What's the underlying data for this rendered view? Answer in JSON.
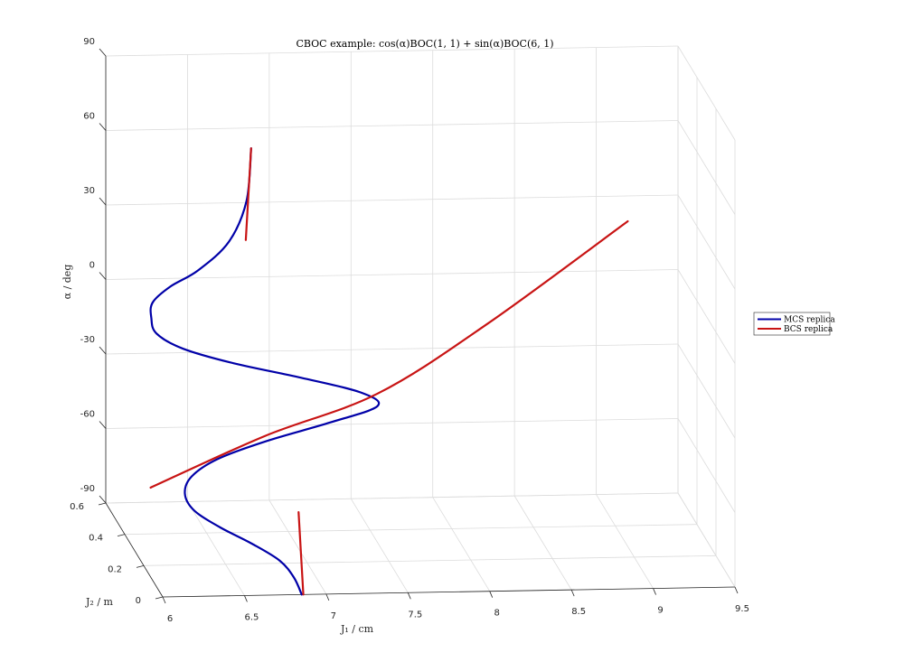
{
  "chart_data": {
    "type": "line",
    "title": "CBOC example: cos(α)BOC(1, 1) + sin(α)BOC(6, 1)",
    "xlabel": "J₁ / cm",
    "ylabel": "J₂ / m",
    "zlabel": "α / deg",
    "xlim": [
      6,
      9.5
    ],
    "ylim": [
      0,
      0.6
    ],
    "zlim": [
      -90,
      90
    ],
    "x_ticks": [
      "6",
      "6.5",
      "7",
      "7.5",
      "8",
      "8.5",
      "9",
      "9.5"
    ],
    "y_ticks": [
      "0",
      "0.2",
      "0.4",
      "0.6"
    ],
    "z_ticks": [
      "-90",
      "-60",
      "-30",
      "0",
      "30",
      "60",
      "90"
    ],
    "grid": true,
    "legend_position": "right",
    "series": [
      {
        "name": "MCS replica",
        "color": "#0000a8",
        "points": [
          [
            6.85,
            0,
            -90
          ],
          [
            6.82,
            0.03,
            -85
          ],
          [
            6.75,
            0.06,
            -80
          ],
          [
            6.6,
            0.09,
            -75
          ],
          [
            6.42,
            0.12,
            -70
          ],
          [
            6.28,
            0.15,
            -65
          ],
          [
            6.24,
            0.18,
            -60
          ],
          [
            6.3,
            0.21,
            -55
          ],
          [
            6.48,
            0.24,
            -50
          ],
          [
            6.8,
            0.27,
            -45
          ],
          [
            7.2,
            0.3,
            -40
          ],
          [
            7.5,
            0.32,
            -35
          ],
          [
            7.4,
            0.33,
            -30
          ],
          [
            7.05,
            0.35,
            -25
          ],
          [
            6.65,
            0.37,
            -20
          ],
          [
            6.35,
            0.39,
            -15
          ],
          [
            6.2,
            0.41,
            -10
          ],
          [
            6.18,
            0.43,
            -5
          ],
          [
            6.2,
            0.45,
            0
          ],
          [
            6.32,
            0.47,
            5
          ],
          [
            6.5,
            0.49,
            10
          ],
          [
            6.7,
            0.51,
            20
          ],
          [
            6.82,
            0.53,
            35
          ],
          [
            6.86,
            0.55,
            55
          ]
        ]
      },
      {
        "name": "BCS replica",
        "color": "#c81414",
        "segments": [
          [
            [
              6.86,
              0.0,
              -90
            ],
            [
              6.86,
              0.05,
              -60
            ]
          ],
          [
            [
              6.1,
              0.3,
              -65
            ],
            [
              6.8,
              0.3,
              -45
            ],
            [
              7.5,
              0.32,
              -30
            ],
            [
              8.2,
              0.36,
              -5
            ],
            [
              9.1,
              0.44,
              30
            ]
          ],
          [
            [
              6.81,
              0.52,
              20
            ],
            [
              6.86,
              0.55,
              55
            ]
          ]
        ]
      }
    ]
  }
}
